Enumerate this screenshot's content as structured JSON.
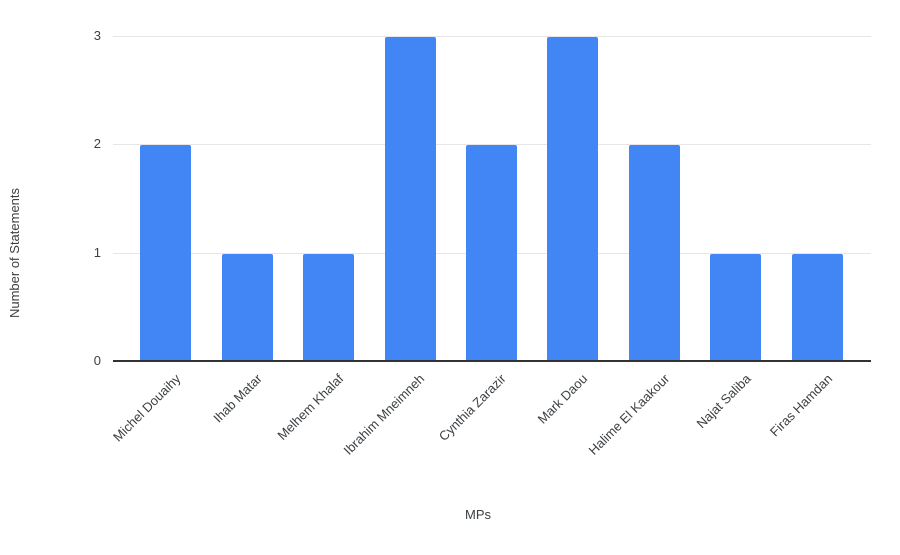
{
  "chart_data": {
    "type": "bar",
    "title": "",
    "xlabel": "MPs",
    "ylabel": "Number of Statements",
    "categories": [
      "Michel Douaihy",
      "Ihab Matar",
      "Melhem Khalaf",
      "Ibrahim Mneimneh",
      "Cynthia Zarazir",
      "Mark Daou",
      "Halime El Kaakour",
      "Najat Saliba",
      "Firas Hamdan"
    ],
    "values": [
      2,
      1,
      1,
      3,
      2,
      3,
      2,
      1,
      1
    ],
    "ylim": [
      0,
      3
    ],
    "yticks": [
      0,
      1,
      2,
      3
    ],
    "grid": true,
    "legend": "none",
    "bar_color": "#4285f4",
    "gridline_color": "#e6e6e6",
    "baseline_color": "#333333",
    "text_color": "#3c4043"
  }
}
